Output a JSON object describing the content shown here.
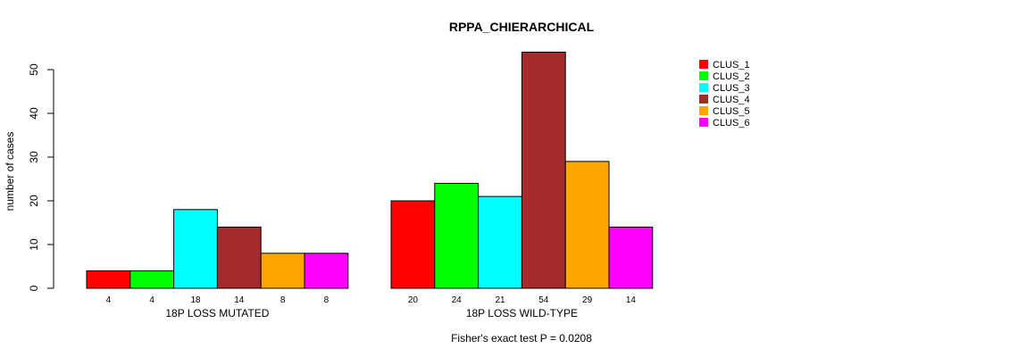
{
  "chart_data": {
    "type": "bar",
    "title": "RPPA_CHIERARCHICAL",
    "ylabel": "number of cases",
    "ylim": [
      0,
      50
    ],
    "yticks": [
      0,
      10,
      20,
      30,
      40,
      50
    ],
    "groups": [
      {
        "label": "18P LOSS MUTATED",
        "values": [
          4,
          4,
          18,
          14,
          8,
          8
        ]
      },
      {
        "label": "18P LOSS WILD-TYPE",
        "values": [
          20,
          24,
          21,
          54,
          29,
          14
        ]
      }
    ],
    "series": [
      {
        "name": "CLUS_1",
        "color": "#ff0000"
      },
      {
        "name": "CLUS_2",
        "color": "#00ff00"
      },
      {
        "name": "CLUS_3",
        "color": "#00ffff"
      },
      {
        "name": "CLUS_4",
        "color": "#a52a2a"
      },
      {
        "name": "CLUS_5",
        "color": "#ffa500"
      },
      {
        "name": "CLUS_6",
        "color": "#ff00ff"
      }
    ],
    "legend_position": "top-right",
    "footnote": "Fisher's exact test P = 0.0208"
  }
}
